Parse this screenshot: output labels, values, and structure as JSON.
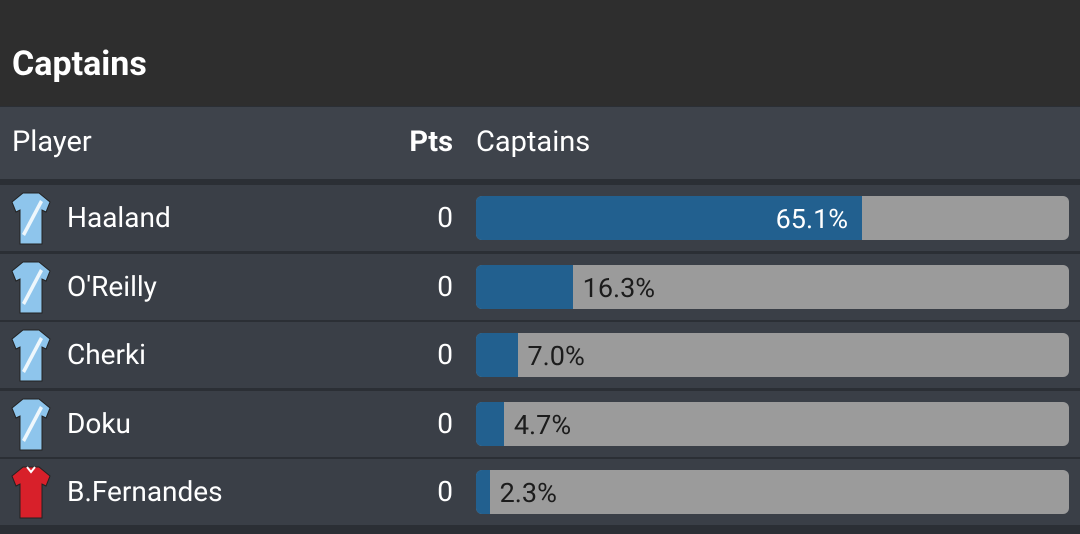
{
  "title": "Captains",
  "table": {
    "columns": [
      "Player",
      "Pts",
      "Captains"
    ],
    "rows": [
      {
        "player": "Haaland",
        "pts": 0,
        "captains": {
          "value": 65.1,
          "label": "65.1%"
        },
        "kit": "#8ec5ec"
      },
      {
        "player": "O'Reilly",
        "pts": 0,
        "captains": {
          "value": 16.3,
          "label": "16.3%"
        },
        "kit": "#8ec5ec"
      },
      {
        "player": "Cherki",
        "pts": 0,
        "captains": {
          "value": 7.0,
          "label": "7.0%"
        },
        "kit": "#8ec5ec"
      },
      {
        "player": "Doku",
        "pts": 0,
        "captains": {
          "value": 4.7,
          "label": "4.7%"
        },
        "kit": "#8ec5ec"
      },
      {
        "player": "B.Fernandes",
        "pts": 0,
        "captains": {
          "value": 2.3,
          "label": "2.3%"
        },
        "kit": "#d8202a"
      }
    ],
    "bar_color": "#22608f",
    "track_color": "#9b9b9b",
    "scale_max": 100
  }
}
